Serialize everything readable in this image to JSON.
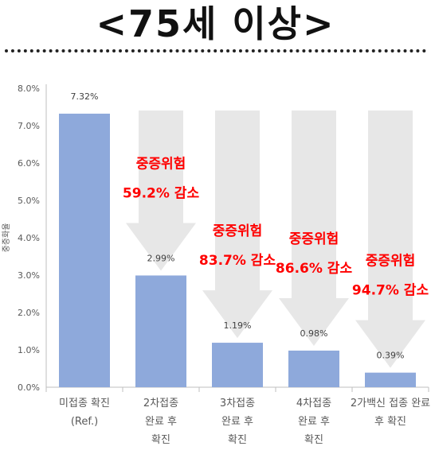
{
  "title": "<75세 이상>",
  "chart_data": {
    "type": "bar",
    "ylabel": "중증화율",
    "ylim": [
      0,
      8
    ],
    "yticks": [
      "0.0%",
      "1.0%",
      "2.0%",
      "3.0%",
      "4.0%",
      "5.0%",
      "6.0%",
      "7.0%",
      "8.0%"
    ],
    "grid": false,
    "categories": [
      [
        "미접종 확진",
        "(Ref.)"
      ],
      [
        "2차접종",
        "완료 후",
        "확진"
      ],
      [
        "3차접종",
        "완료 후",
        "확진"
      ],
      [
        "4차접종",
        "완료 후",
        "확진"
      ],
      [
        "2가백신 접종 완료",
        "후 확진"
      ]
    ],
    "values": [
      7.32,
      2.99,
      1.19,
      0.98,
      0.39
    ],
    "data_labels": [
      "7.32%",
      "2.99%",
      "1.19%",
      "0.98%",
      "0.39%"
    ],
    "annotations": [
      null,
      [
        "중증위험",
        "59.2% 감소"
      ],
      [
        "중증위험",
        "83.7% 감소"
      ],
      [
        "중증위험",
        "86.6% 감소"
      ],
      [
        "중증위험",
        "94.7% 감소"
      ]
    ],
    "colors": {
      "bar": "#8EA9DB",
      "arrow": "#E7E7E7",
      "annotation": "#FF0000",
      "axis": "#BFBFBF",
      "text": "#595959"
    }
  }
}
